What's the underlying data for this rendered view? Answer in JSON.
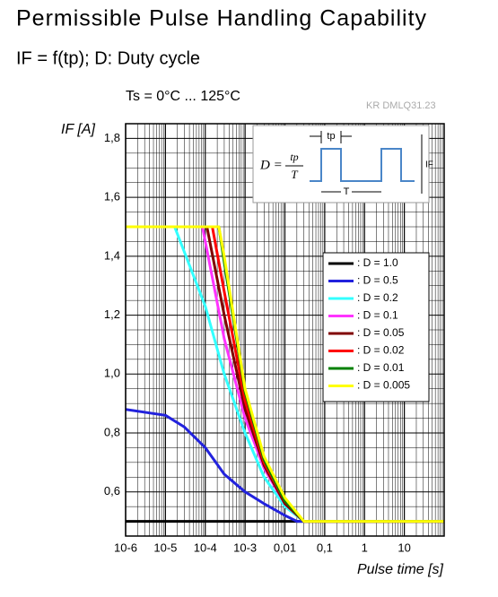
{
  "chart_data": {
    "type": "line",
    "title": "Permissible Pulse Handling Capability",
    "subtitle": "IF = f(tp); D: Duty cycle",
    "condition": "Ts = 0°C ... 125°C",
    "code": "KR DMLQ31.23",
    "y_label": "IF [A]",
    "x_label": "Pulse time [s]",
    "inset": {
      "formula": "D =",
      "numerator": "tp",
      "denominator": "T",
      "pulse_width": "tp",
      "period": "T",
      "amplitude": "IF"
    },
    "log_x": true,
    "grid": true,
    "xlim": [
      1e-06,
      100
    ],
    "ylim": [
      0.45,
      1.85
    ],
    "xticks": [
      {
        "value": 1e-06,
        "label": "10-6"
      },
      {
        "value": 1e-05,
        "label": "10-5"
      },
      {
        "value": 0.0001,
        "label": "10-4"
      },
      {
        "value": 0.001,
        "label": "10-3"
      },
      {
        "value": 0.01,
        "label": "0,01"
      },
      {
        "value": 0.1,
        "label": "0,1"
      },
      1,
      10
    ],
    "yticks": [
      {
        "value": 0.6,
        "label": "0,6"
      },
      {
        "value": 0.8,
        "label": "0,8"
      },
      {
        "value": 1.0,
        "label": "1,0"
      },
      {
        "value": 1.2,
        "label": "1,2"
      },
      {
        "value": 1.4,
        "label": "1,4"
      },
      {
        "value": 1.6,
        "label": "1,6"
      },
      {
        "value": 1.8,
        "label": "1,8"
      }
    ],
    "series": [
      {
        "name": ": D = 1.0",
        "color": "#000000",
        "x": [
          1e-06,
          100
        ],
        "values": [
          0.5,
          0.5
        ]
      },
      {
        "name": ": D = 0.5",
        "color": "#2222dd",
        "x": [
          1e-06,
          1e-05,
          3e-05,
          0.0001,
          0.0003,
          0.001,
          0.003,
          0.01,
          0.02,
          100
        ],
        "values": [
          0.88,
          0.86,
          0.82,
          0.75,
          0.66,
          0.6,
          0.56,
          0.52,
          0.5,
          0.5
        ]
      },
      {
        "name": ": D = 0.2",
        "color": "#33ffff",
        "x": [
          1e-06,
          1.7e-05,
          0.0001,
          0.0003,
          0.001,
          0.003,
          0.01,
          0.03,
          100
        ],
        "values": [
          1.5,
          1.5,
          1.23,
          1.0,
          0.8,
          0.65,
          0.55,
          0.5,
          0.5
        ]
      },
      {
        "name": ": D = 0.1",
        "color": "#ff33ff",
        "x": [
          1e-06,
          8.5e-05,
          0.0003,
          0.001,
          0.003,
          0.01,
          0.03,
          100
        ],
        "values": [
          1.5,
          1.5,
          1.12,
          0.85,
          0.68,
          0.56,
          0.5,
          0.5
        ]
      },
      {
        "name": ": D = 0.05",
        "color": "#800000",
        "x": [
          1e-06,
          0.00011,
          0.0003,
          0.001,
          0.003,
          0.01,
          0.03,
          100
        ],
        "values": [
          1.5,
          1.5,
          1.2,
          0.88,
          0.69,
          0.56,
          0.5,
          0.5
        ]
      },
      {
        "name": ": D = 0.02",
        "color": "#ff0000",
        "x": [
          1e-06,
          0.00015,
          0.0003,
          0.001,
          0.003,
          0.01,
          0.03,
          100
        ],
        "values": [
          1.5,
          1.5,
          1.28,
          0.91,
          0.7,
          0.57,
          0.5,
          0.5
        ]
      },
      {
        "name": ": D = 0.01",
        "color": "#008000",
        "x": [
          1e-06,
          0.00022,
          0.0003,
          0.001,
          0.003,
          0.01,
          0.03,
          100
        ],
        "values": [
          1.5,
          1.5,
          1.38,
          0.94,
          0.71,
          0.57,
          0.5,
          0.5
        ]
      },
      {
        "name": ": D = 0.005",
        "color": "#ffff00",
        "x": [
          1e-06,
          0.00022,
          0.0003,
          0.001,
          0.003,
          0.01,
          0.03,
          100
        ],
        "values": [
          1.5,
          1.5,
          1.4,
          0.95,
          0.72,
          0.58,
          0.5,
          0.5
        ]
      }
    ]
  }
}
